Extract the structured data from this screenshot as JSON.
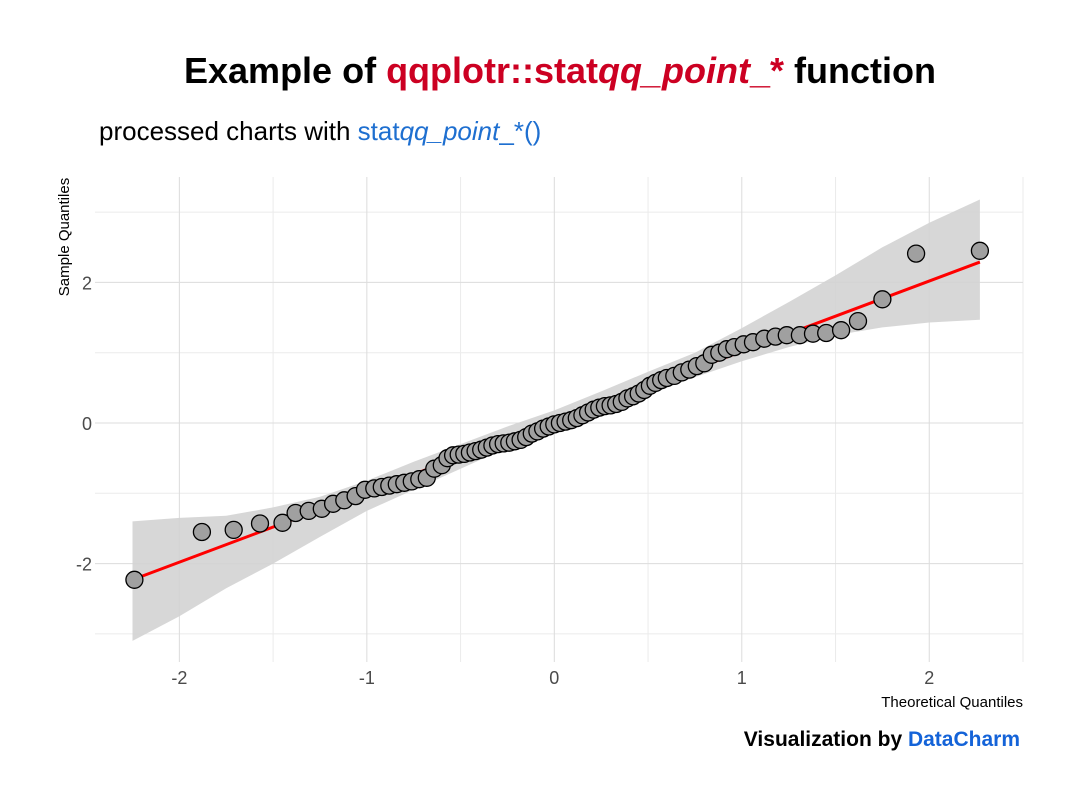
{
  "header": {
    "title_prefix": "Example of ",
    "title_code_a": "qqplotr::stat",
    "title_code_b": "qq_point",
    "title_code_c": "_*",
    "title_suffix": " function",
    "subtitle_prefix": "processed charts with ",
    "subtitle_code_a": "stat",
    "subtitle_code_b": "qq_point",
    "subtitle_code_c": "_*()",
    "caption_prefix": "Visualization by ",
    "caption_brand": "DataCharm"
  },
  "colors": {
    "title_accent": "#cc0022",
    "subtitle_accent": "#1e6fd0",
    "brand": "#1463d8",
    "line": "#ff0000",
    "band": "#d3d3d3",
    "point_fill": "#a0a0a0",
    "point_stroke": "#000000",
    "grid": "#dcdcdc"
  },
  "chart_data": {
    "type": "scatter",
    "title": "Example of qqplotr::statqq_point_* function",
    "subtitle": "processed charts with statqq_point_*()",
    "xlabel": "Theoretical Quantiles",
    "ylabel": "Sample Quantiles",
    "xlim": [
      -2.45,
      2.5
    ],
    "ylim": [
      -3.4,
      3.5
    ],
    "x_ticks": [
      -2,
      -1,
      0,
      1,
      2
    ],
    "y_ticks": [
      -2,
      0,
      2
    ],
    "x_tick_labels": [
      "-2",
      "-1",
      "0",
      "1",
      "2"
    ],
    "y_tick_labels": [
      "-2",
      "0",
      "2"
    ],
    "grid": true,
    "legend": "none",
    "reference_line": {
      "x": [
        -2.25,
        2.27
      ],
      "y": [
        -2.23,
        2.29
      ]
    },
    "confidence_band": {
      "x": [
        -2.25,
        -2.0,
        -1.75,
        -1.5,
        -1.25,
        -1.0,
        -0.75,
        -0.5,
        -0.25,
        0.0,
        0.25,
        0.5,
        0.75,
        1.0,
        1.25,
        1.5,
        1.75,
        2.0,
        2.27
      ],
      "upper": [
        -1.4,
        -1.35,
        -1.32,
        -1.2,
        -1.05,
        -0.82,
        -0.55,
        -0.3,
        -0.05,
        0.18,
        0.45,
        0.73,
        1.0,
        1.35,
        1.72,
        2.1,
        2.5,
        2.85,
        3.18
      ],
      "lower": [
        -3.1,
        -2.75,
        -2.35,
        -2.0,
        -1.62,
        -1.25,
        -0.95,
        -0.65,
        -0.35,
        -0.08,
        0.15,
        0.4,
        0.65,
        0.88,
        1.08,
        1.25,
        1.36,
        1.43,
        1.47
      ]
    },
    "points": {
      "x": [
        -2.24,
        -1.88,
        -1.71,
        -1.57,
        -1.45,
        -1.38,
        -1.31,
        -1.24,
        -1.18,
        -1.12,
        -1.06,
        -1.01,
        -0.96,
        -0.92,
        -0.88,
        -0.84,
        -0.8,
        -0.76,
        -0.72,
        -0.68,
        -0.64,
        -0.6,
        -0.57,
        -0.54,
        -0.51,
        -0.48,
        -0.45,
        -0.42,
        -0.39,
        -0.36,
        -0.33,
        -0.3,
        -0.27,
        -0.24,
        -0.21,
        -0.18,
        -0.15,
        -0.12,
        -0.09,
        -0.06,
        -0.03,
        0.0,
        0.03,
        0.06,
        0.09,
        0.12,
        0.15,
        0.18,
        0.21,
        0.24,
        0.27,
        0.3,
        0.33,
        0.36,
        0.39,
        0.42,
        0.45,
        0.48,
        0.51,
        0.54,
        0.57,
        0.6,
        0.64,
        0.68,
        0.72,
        0.76,
        0.8,
        0.84,
        0.88,
        0.92,
        0.96,
        1.01,
        1.06,
        1.12,
        1.18,
        1.24,
        1.31,
        1.38,
        1.45,
        1.53,
        1.62,
        1.75,
        1.93,
        2.27
      ],
      "y": [
        -2.23,
        -1.55,
        -1.52,
        -1.43,
        -1.42,
        -1.28,
        -1.25,
        -1.22,
        -1.15,
        -1.1,
        -1.04,
        -0.95,
        -0.93,
        -0.91,
        -0.89,
        -0.87,
        -0.85,
        -0.83,
        -0.8,
        -0.78,
        -0.65,
        -0.6,
        -0.5,
        -0.46,
        -0.45,
        -0.44,
        -0.42,
        -0.4,
        -0.38,
        -0.35,
        -0.32,
        -0.3,
        -0.29,
        -0.28,
        -0.26,
        -0.24,
        -0.2,
        -0.15,
        -0.12,
        -0.08,
        -0.05,
        -0.02,
        0.0,
        0.02,
        0.04,
        0.07,
        0.11,
        0.15,
        0.19,
        0.22,
        0.24,
        0.25,
        0.27,
        0.3,
        0.35,
        0.38,
        0.42,
        0.47,
        0.53,
        0.57,
        0.61,
        0.64,
        0.67,
        0.72,
        0.76,
        0.81,
        0.85,
        0.97,
        1.0,
        1.05,
        1.08,
        1.12,
        1.15,
        1.2,
        1.23,
        1.25,
        1.25,
        1.27,
        1.28,
        1.32,
        1.45,
        1.76,
        2.41,
        2.45
      ]
    }
  }
}
